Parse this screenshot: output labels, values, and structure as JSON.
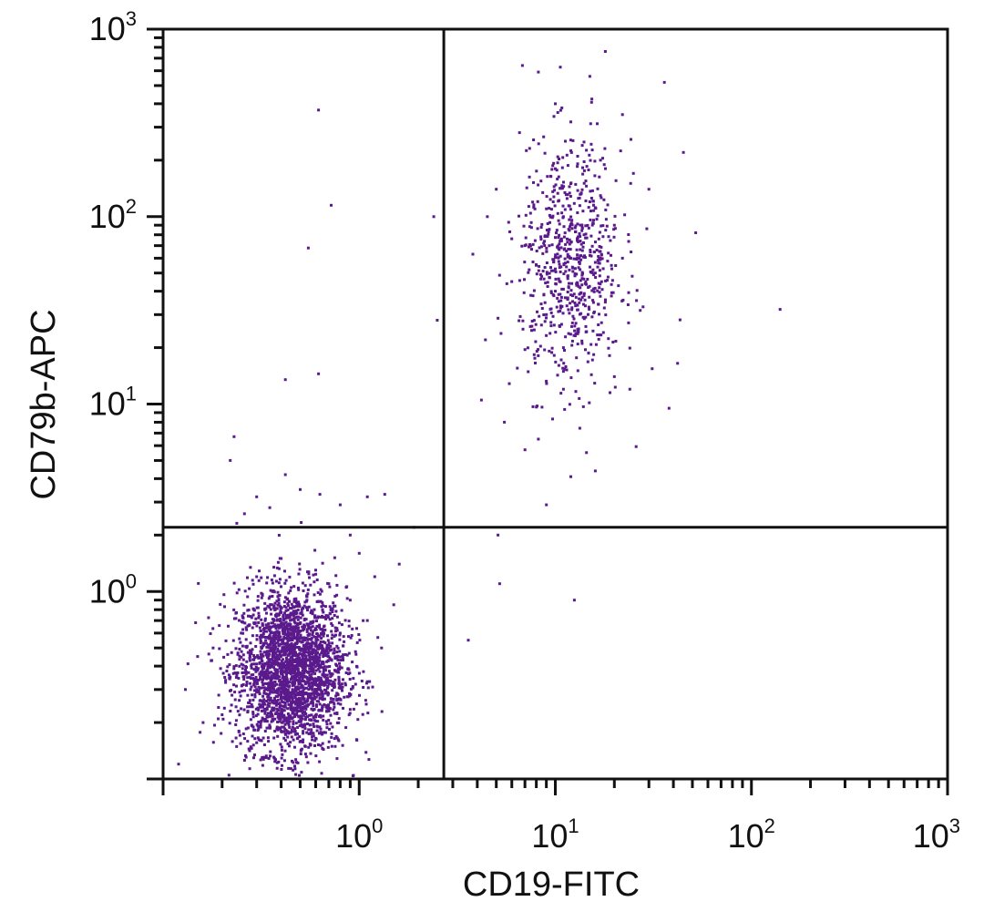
{
  "chart_data": {
    "type": "scatter",
    "title": "",
    "xlabel": "CD19-FITC",
    "ylabel": "CD79b-APC",
    "x_scale": "log",
    "y_scale": "log",
    "xlim": [
      0.1,
      1000
    ],
    "ylim": [
      0.1,
      1000
    ],
    "x_ticks": [
      {
        "value": 1,
        "base": "10",
        "exponent": "0"
      },
      {
        "value": 10,
        "base": "10",
        "exponent": "1"
      },
      {
        "value": 100,
        "base": "10",
        "exponent": "2"
      },
      {
        "value": 1000,
        "base": "10",
        "exponent": "3"
      }
    ],
    "y_ticks": [
      {
        "value": 1,
        "base": "10",
        "exponent": "0"
      },
      {
        "value": 10,
        "base": "10",
        "exponent": "1"
      },
      {
        "value": 100,
        "base": "10",
        "exponent": "2"
      },
      {
        "value": 1000,
        "base": "10",
        "exponent": "3"
      }
    ],
    "gates": {
      "x": 2.7,
      "y": 2.2
    },
    "grid": false,
    "point_color": "#5a1a8c",
    "axis_color": "#111111",
    "series": [
      {
        "points": [
          [
            0.35,
            0.42
          ],
          [
            0.42,
            0.5
          ],
          [
            0.5,
            0.36
          ],
          [
            0.45,
            0.62
          ],
          [
            0.55,
            0.28
          ],
          [
            0.3,
            0.3
          ],
          [
            0.38,
            0.7
          ],
          [
            0.6,
            0.45
          ],
          [
            0.48,
            0.22
          ],
          [
            0.4,
            0.18
          ],
          [
            0.52,
            0.55
          ],
          [
            0.33,
            0.25
          ],
          [
            0.58,
            0.65
          ],
          [
            0.46,
            0.33
          ],
          [
            0.62,
            0.3
          ],
          [
            0.28,
            0.48
          ],
          [
            0.7,
            0.52
          ],
          [
            0.25,
            0.6
          ],
          [
            0.36,
            0.85
          ],
          [
            0.44,
            0.15
          ],
          [
            0.65,
            0.8
          ],
          [
            0.54,
            0.95
          ],
          [
            0.32,
            0.13
          ],
          [
            0.75,
            0.38
          ],
          [
            0.22,
            0.35
          ],
          [
            0.8,
            0.6
          ],
          [
            0.2,
            0.22
          ],
          [
            0.9,
            0.9
          ],
          [
            1.1,
            0.7
          ],
          [
            1.3,
            0.5
          ],
          [
            0.18,
            0.5
          ],
          [
            0.15,
            0.45
          ],
          [
            0.13,
            0.3
          ],
          [
            0.16,
            0.2
          ],
          [
            0.12,
            0.12
          ],
          [
            1.6,
            1.4
          ],
          [
            1.5,
            0.85
          ],
          [
            1.2,
            1.2
          ],
          [
            1.0,
            1.6
          ],
          [
            0.9,
            2.0
          ],
          [
            0.7,
            1.1
          ],
          [
            0.6,
            1.3
          ],
          [
            0.45,
            1.05
          ],
          [
            0.4,
            1.5
          ],
          [
            0.3,
            1.2
          ],
          [
            0.26,
            2.6
          ],
          [
            0.3,
            3.2
          ],
          [
            0.35,
            2.8
          ],
          [
            0.42,
            4.2
          ],
          [
            0.5,
            3.5
          ],
          [
            0.63,
            3.3
          ],
          [
            0.8,
            2.9
          ],
          [
            1.1,
            3.2
          ],
          [
            1.35,
            3.3
          ],
          [
            0.22,
            5.0
          ],
          [
            0.23,
            6.7
          ],
          [
            0.42,
            13.5
          ],
          [
            0.62,
            14.5
          ],
          [
            0.55,
            68
          ],
          [
            0.72,
            115
          ],
          [
            0.62,
            370
          ],
          [
            2.4,
            100
          ],
          [
            2.5,
            28
          ],
          [
            1.9,
            2.2
          ],
          [
            3.6,
            0.55
          ],
          [
            5.2,
            1.1
          ],
          [
            5.1,
            2.0
          ],
          [
            12.5,
            0.9
          ],
          [
            10,
            40
          ],
          [
            12,
            60
          ],
          [
            14,
            80
          ],
          [
            11,
            100
          ],
          [
            15,
            120
          ],
          [
            9,
            30
          ],
          [
            13,
            25
          ],
          [
            16,
            50
          ],
          [
            8,
            55
          ],
          [
            12,
            150
          ],
          [
            17,
            200
          ],
          [
            10,
            180
          ],
          [
            14,
            250
          ],
          [
            11,
            20
          ],
          [
            18,
            35
          ],
          [
            7,
            70
          ],
          [
            20,
            90
          ],
          [
            9,
            110
          ],
          [
            6.8,
            640
          ],
          [
            8.2,
            590
          ],
          [
            10,
            400
          ],
          [
            12,
            320
          ],
          [
            15,
            560
          ],
          [
            18,
            760
          ],
          [
            22,
            350
          ],
          [
            13,
            210
          ],
          [
            25,
            170
          ],
          [
            30,
            140
          ],
          [
            36,
            520
          ],
          [
            45,
            220
          ],
          [
            52,
            82
          ],
          [
            140,
            32
          ],
          [
            42,
            16.5
          ],
          [
            38,
            9.5
          ],
          [
            5.5,
            8.0
          ],
          [
            8.2,
            6.5
          ],
          [
            7.0,
            5.7
          ],
          [
            9.0,
            2.9
          ],
          [
            12,
            4.1
          ],
          [
            16,
            4.4
          ],
          [
            4.2,
            10.5
          ],
          [
            4.4,
            22
          ],
          [
            3.8,
            63
          ],
          [
            5,
            140
          ],
          [
            4.5,
            100
          ],
          [
            6,
            45
          ],
          [
            7.5,
            38
          ],
          [
            20,
            14
          ],
          [
            24,
            12
          ],
          [
            28,
            33
          ],
          [
            22,
            60
          ],
          [
            19,
            11.5
          ],
          [
            11,
            12
          ]
        ]
      }
    ]
  }
}
